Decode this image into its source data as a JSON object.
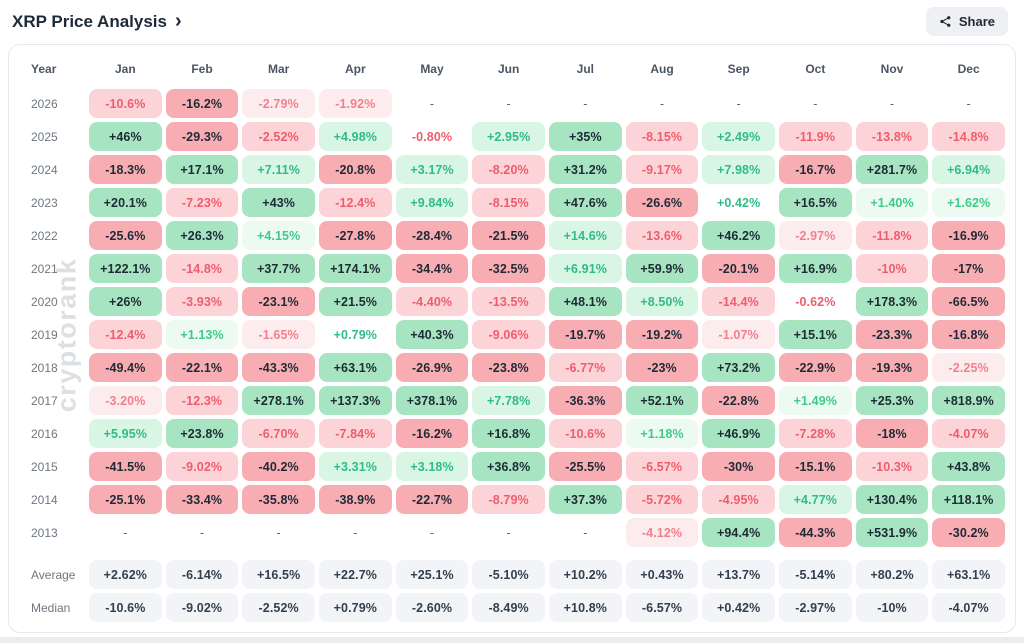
{
  "header": {
    "title": "XRP Price Analysis",
    "chevron": "›",
    "share_label": "Share"
  },
  "watermark": "cryptorank",
  "chart_data": {
    "type": "heatmap",
    "title": "XRP Price Analysis",
    "unit": "percent monthly return",
    "legend": "cell tone encodes sign and magnitude: g=green/positive, r=red/negative, 0-3 intensity, n=no data, avg=summary gray",
    "columns": [
      "Year",
      "Jan",
      "Feb",
      "Mar",
      "Apr",
      "May",
      "Jun",
      "Jul",
      "Aug",
      "Sep",
      "Oct",
      "Nov",
      "Dec"
    ],
    "rows": [
      {
        "label": "2026",
        "summary": false,
        "cells": [
          {
            "v": "-10.6%",
            "t": "r2"
          },
          {
            "v": "-16.2%",
            "t": "r3"
          },
          {
            "v": "-2.79%",
            "t": "r1"
          },
          {
            "v": "-1.92%",
            "t": "r1"
          },
          {
            "v": "-",
            "t": "n"
          },
          {
            "v": "-",
            "t": "n"
          },
          {
            "v": "-",
            "t": "n"
          },
          {
            "v": "-",
            "t": "n"
          },
          {
            "v": "-",
            "t": "n"
          },
          {
            "v": "-",
            "t": "n"
          },
          {
            "v": "-",
            "t": "n"
          },
          {
            "v": "-",
            "t": "n"
          }
        ]
      },
      {
        "label": "2025",
        "summary": false,
        "cells": [
          {
            "v": "+46%",
            "t": "g3"
          },
          {
            "v": "-29.3%",
            "t": "r3"
          },
          {
            "v": "-2.52%",
            "t": "r2"
          },
          {
            "v": "+4.98%",
            "t": "g2"
          },
          {
            "v": "-0.80%",
            "t": "r0"
          },
          {
            "v": "+2.95%",
            "t": "g2"
          },
          {
            "v": "+35%",
            "t": "g3"
          },
          {
            "v": "-8.15%",
            "t": "r2"
          },
          {
            "v": "+2.49%",
            "t": "g2"
          },
          {
            "v": "-11.9%",
            "t": "r2"
          },
          {
            "v": "-13.8%",
            "t": "r2"
          },
          {
            "v": "-14.8%",
            "t": "r2"
          }
        ]
      },
      {
        "label": "2024",
        "summary": false,
        "cells": [
          {
            "v": "-18.3%",
            "t": "r3"
          },
          {
            "v": "+17.1%",
            "t": "g3"
          },
          {
            "v": "+7.11%",
            "t": "g2"
          },
          {
            "v": "-20.8%",
            "t": "r3"
          },
          {
            "v": "+3.17%",
            "t": "g2"
          },
          {
            "v": "-8.20%",
            "t": "r2"
          },
          {
            "v": "+31.2%",
            "t": "g3"
          },
          {
            "v": "-9.17%",
            "t": "r2"
          },
          {
            "v": "+7.98%",
            "t": "g2"
          },
          {
            "v": "-16.7%",
            "t": "r3"
          },
          {
            "v": "+281.7%",
            "t": "g3"
          },
          {
            "v": "+6.94%",
            "t": "g2"
          }
        ]
      },
      {
        "label": "2023",
        "summary": false,
        "cells": [
          {
            "v": "+20.1%",
            "t": "g3"
          },
          {
            "v": "-7.23%",
            "t": "r2"
          },
          {
            "v": "+43%",
            "t": "g3"
          },
          {
            "v": "-12.4%",
            "t": "r2"
          },
          {
            "v": "+9.84%",
            "t": "g2"
          },
          {
            "v": "-8.15%",
            "t": "r2"
          },
          {
            "v": "+47.6%",
            "t": "g3"
          },
          {
            "v": "-26.6%",
            "t": "r3"
          },
          {
            "v": "+0.42%",
            "t": "g0"
          },
          {
            "v": "+16.5%",
            "t": "g3"
          },
          {
            "v": "+1.40%",
            "t": "g1"
          },
          {
            "v": "+1.62%",
            "t": "g1"
          }
        ]
      },
      {
        "label": "2022",
        "summary": false,
        "cells": [
          {
            "v": "-25.6%",
            "t": "r3"
          },
          {
            "v": "+26.3%",
            "t": "g3"
          },
          {
            "v": "+4.15%",
            "t": "g1"
          },
          {
            "v": "-27.8%",
            "t": "r3"
          },
          {
            "v": "-28.4%",
            "t": "r3"
          },
          {
            "v": "-21.5%",
            "t": "r3"
          },
          {
            "v": "+14.6%",
            "t": "g2"
          },
          {
            "v": "-13.6%",
            "t": "r2"
          },
          {
            "v": "+46.2%",
            "t": "g3"
          },
          {
            "v": "-2.97%",
            "t": "r1"
          },
          {
            "v": "-11.8%",
            "t": "r2"
          },
          {
            "v": "-16.9%",
            "t": "r3"
          }
        ]
      },
      {
        "label": "2021",
        "summary": false,
        "cells": [
          {
            "v": "+122.1%",
            "t": "g3"
          },
          {
            "v": "-14.8%",
            "t": "r2"
          },
          {
            "v": "+37.7%",
            "t": "g3"
          },
          {
            "v": "+174.1%",
            "t": "g3"
          },
          {
            "v": "-34.4%",
            "t": "r3"
          },
          {
            "v": "-32.5%",
            "t": "r3"
          },
          {
            "v": "+6.91%",
            "t": "g2"
          },
          {
            "v": "+59.9%",
            "t": "g3"
          },
          {
            "v": "-20.1%",
            "t": "r3"
          },
          {
            "v": "+16.9%",
            "t": "g3"
          },
          {
            "v": "-10%",
            "t": "r2"
          },
          {
            "v": "-17%",
            "t": "r3"
          }
        ]
      },
      {
        "label": "2020",
        "summary": false,
        "cells": [
          {
            "v": "+26%",
            "t": "g3"
          },
          {
            "v": "-3.93%",
            "t": "r2"
          },
          {
            "v": "-23.1%",
            "t": "r3"
          },
          {
            "v": "+21.5%",
            "t": "g3"
          },
          {
            "v": "-4.40%",
            "t": "r2"
          },
          {
            "v": "-13.5%",
            "t": "r2"
          },
          {
            "v": "+48.1%",
            "t": "g3"
          },
          {
            "v": "+8.50%",
            "t": "g2"
          },
          {
            "v": "-14.4%",
            "t": "r2"
          },
          {
            "v": "-0.62%",
            "t": "r0"
          },
          {
            "v": "+178.3%",
            "t": "g3"
          },
          {
            "v": "-66.5%",
            "t": "r3"
          }
        ]
      },
      {
        "label": "2019",
        "summary": false,
        "cells": [
          {
            "v": "-12.4%",
            "t": "r2"
          },
          {
            "v": "+1.13%",
            "t": "g1"
          },
          {
            "v": "-1.65%",
            "t": "r1"
          },
          {
            "v": "+0.79%",
            "t": "g0"
          },
          {
            "v": "+40.3%",
            "t": "g3"
          },
          {
            "v": "-9.06%",
            "t": "r2"
          },
          {
            "v": "-19.7%",
            "t": "r3"
          },
          {
            "v": "-19.2%",
            "t": "r3"
          },
          {
            "v": "-1.07%",
            "t": "r1"
          },
          {
            "v": "+15.1%",
            "t": "g3"
          },
          {
            "v": "-23.3%",
            "t": "r3"
          },
          {
            "v": "-16.8%",
            "t": "r3"
          }
        ]
      },
      {
        "label": "2018",
        "summary": false,
        "cells": [
          {
            "v": "-49.4%",
            "t": "r3"
          },
          {
            "v": "-22.1%",
            "t": "r3"
          },
          {
            "v": "-43.3%",
            "t": "r3"
          },
          {
            "v": "+63.1%",
            "t": "g3"
          },
          {
            "v": "-26.9%",
            "t": "r3"
          },
          {
            "v": "-23.8%",
            "t": "r3"
          },
          {
            "v": "-6.77%",
            "t": "r2"
          },
          {
            "v": "-23%",
            "t": "r3"
          },
          {
            "v": "+73.2%",
            "t": "g3"
          },
          {
            "v": "-22.9%",
            "t": "r3"
          },
          {
            "v": "-19.3%",
            "t": "r3"
          },
          {
            "v": "-2.25%",
            "t": "r1"
          }
        ]
      },
      {
        "label": "2017",
        "summary": false,
        "cells": [
          {
            "v": "-3.20%",
            "t": "r1"
          },
          {
            "v": "-12.3%",
            "t": "r2"
          },
          {
            "v": "+278.1%",
            "t": "g3"
          },
          {
            "v": "+137.3%",
            "t": "g3"
          },
          {
            "v": "+378.1%",
            "t": "g3"
          },
          {
            "v": "+7.78%",
            "t": "g2"
          },
          {
            "v": "-36.3%",
            "t": "r3"
          },
          {
            "v": "+52.1%",
            "t": "g3"
          },
          {
            "v": "-22.8%",
            "t": "r3"
          },
          {
            "v": "+1.49%",
            "t": "g1"
          },
          {
            "v": "+25.3%",
            "t": "g3"
          },
          {
            "v": "+818.9%",
            "t": "g3"
          }
        ]
      },
      {
        "label": "2016",
        "summary": false,
        "cells": [
          {
            "v": "+5.95%",
            "t": "g2"
          },
          {
            "v": "+23.8%",
            "t": "g3"
          },
          {
            "v": "-6.70%",
            "t": "r2"
          },
          {
            "v": "-7.84%",
            "t": "r2"
          },
          {
            "v": "-16.2%",
            "t": "r3"
          },
          {
            "v": "+16.8%",
            "t": "g3"
          },
          {
            "v": "-10.6%",
            "t": "r2"
          },
          {
            "v": "+1.18%",
            "t": "g1"
          },
          {
            "v": "+46.9%",
            "t": "g3"
          },
          {
            "v": "-7.28%",
            "t": "r2"
          },
          {
            "v": "-18%",
            "t": "r3"
          },
          {
            "v": "-4.07%",
            "t": "r2"
          }
        ]
      },
      {
        "label": "2015",
        "summary": false,
        "cells": [
          {
            "v": "-41.5%",
            "t": "r3"
          },
          {
            "v": "-9.02%",
            "t": "r2"
          },
          {
            "v": "-40.2%",
            "t": "r3"
          },
          {
            "v": "+3.31%",
            "t": "g2"
          },
          {
            "v": "+3.18%",
            "t": "g2"
          },
          {
            "v": "+36.8%",
            "t": "g3"
          },
          {
            "v": "-25.5%",
            "t": "r3"
          },
          {
            "v": "-6.57%",
            "t": "r2"
          },
          {
            "v": "-30%",
            "t": "r3"
          },
          {
            "v": "-15.1%",
            "t": "r3"
          },
          {
            "v": "-10.3%",
            "t": "r2"
          },
          {
            "v": "+43.8%",
            "t": "g3"
          }
        ]
      },
      {
        "label": "2014",
        "summary": false,
        "cells": [
          {
            "v": "-25.1%",
            "t": "r3"
          },
          {
            "v": "-33.4%",
            "t": "r3"
          },
          {
            "v": "-35.8%",
            "t": "r3"
          },
          {
            "v": "-38.9%",
            "t": "r3"
          },
          {
            "v": "-22.7%",
            "t": "r3"
          },
          {
            "v": "-8.79%",
            "t": "r2"
          },
          {
            "v": "+37.3%",
            "t": "g3"
          },
          {
            "v": "-5.72%",
            "t": "r2"
          },
          {
            "v": "-4.95%",
            "t": "r2"
          },
          {
            "v": "+4.77%",
            "t": "g2"
          },
          {
            "v": "+130.4%",
            "t": "g3"
          },
          {
            "v": "+118.1%",
            "t": "g3"
          }
        ]
      },
      {
        "label": "2013",
        "summary": false,
        "cells": [
          {
            "v": "-",
            "t": "n"
          },
          {
            "v": "-",
            "t": "n"
          },
          {
            "v": "-",
            "t": "n"
          },
          {
            "v": "-",
            "t": "n"
          },
          {
            "v": "-",
            "t": "n"
          },
          {
            "v": "-",
            "t": "n"
          },
          {
            "v": "-",
            "t": "n"
          },
          {
            "v": "-4.12%",
            "t": "r1"
          },
          {
            "v": "+94.4%",
            "t": "g3"
          },
          {
            "v": "-44.3%",
            "t": "r3"
          },
          {
            "v": "+531.9%",
            "t": "g3"
          },
          {
            "v": "-30.2%",
            "t": "r3"
          }
        ]
      },
      {
        "label": "Average",
        "summary": true,
        "cells": [
          {
            "v": "+2.62%",
            "t": "avg"
          },
          {
            "v": "-6.14%",
            "t": "avg"
          },
          {
            "v": "+16.5%",
            "t": "avg"
          },
          {
            "v": "+22.7%",
            "t": "avg"
          },
          {
            "v": "+25.1%",
            "t": "avg"
          },
          {
            "v": "-5.10%",
            "t": "avg"
          },
          {
            "v": "+10.2%",
            "t": "avg"
          },
          {
            "v": "+0.43%",
            "t": "avg"
          },
          {
            "v": "+13.7%",
            "t": "avg"
          },
          {
            "v": "-5.14%",
            "t": "avg"
          },
          {
            "v": "+80.2%",
            "t": "avg"
          },
          {
            "v": "+63.1%",
            "t": "avg"
          }
        ]
      },
      {
        "label": "Median",
        "summary": true,
        "cells": [
          {
            "v": "-10.6%",
            "t": "avg"
          },
          {
            "v": "-9.02%",
            "t": "avg"
          },
          {
            "v": "-2.52%",
            "t": "avg"
          },
          {
            "v": "+0.79%",
            "t": "avg"
          },
          {
            "v": "-2.60%",
            "t": "avg"
          },
          {
            "v": "-8.49%",
            "t": "avg"
          },
          {
            "v": "+10.8%",
            "t": "avg"
          },
          {
            "v": "-6.57%",
            "t": "avg"
          },
          {
            "v": "+0.42%",
            "t": "avg"
          },
          {
            "v": "-2.97%",
            "t": "avg"
          },
          {
            "v": "-10%",
            "t": "avg"
          },
          {
            "v": "-4.07%",
            "t": "avg"
          }
        ]
      }
    ]
  }
}
